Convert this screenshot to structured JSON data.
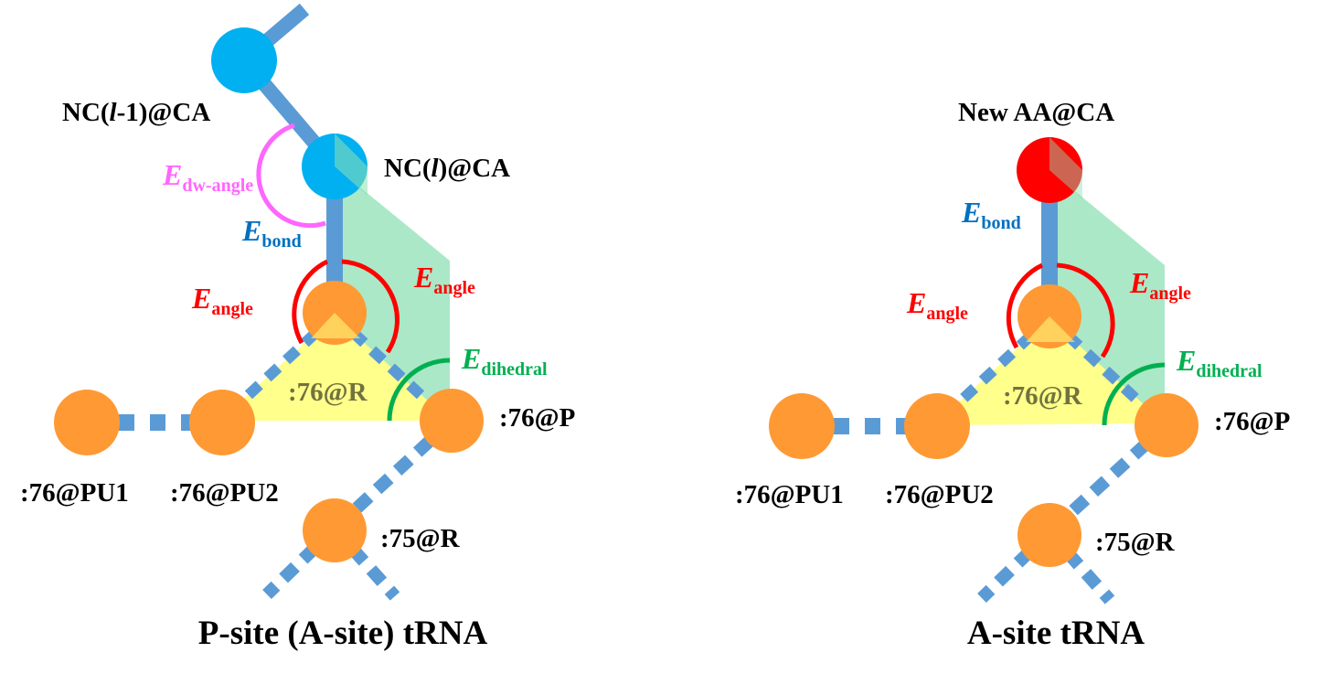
{
  "left": {
    "title": "P-site (A-site) tRNA",
    "atoms": {
      "nc_prev": "NC(l-1)@CA",
      "nc_cur": "NC(l)@CA",
      "r76": ":76@R",
      "p76": ":76@P",
      "pu1": ":76@PU1",
      "pu2": ":76@PU2",
      "r75": ":75@R"
    },
    "energy": {
      "dw_angle": {
        "symbol": "E",
        "subscript": "dw-angle"
      },
      "bond": {
        "symbol": "E",
        "subscript": "bond"
      },
      "angle_left": {
        "symbol": "E",
        "subscript": "angle"
      },
      "angle_right": {
        "symbol": "E",
        "subscript": "angle"
      },
      "dihedral": {
        "symbol": "E",
        "subscript": "dihedral"
      }
    }
  },
  "right": {
    "title": "A-site tRNA",
    "atoms": {
      "new_aa": "New AA@CA",
      "r76": ":76@R",
      "p76": ":76@P",
      "pu1": ":76@PU1",
      "pu2": ":76@PU2",
      "r75": ":75@R"
    },
    "energy": {
      "bond": {
        "symbol": "E",
        "subscript": "bond"
      },
      "angle_left": {
        "symbol": "E",
        "subscript": "angle"
      },
      "angle_right": {
        "symbol": "E",
        "subscript": "angle"
      },
      "dihedral": {
        "symbol": "E",
        "subscript": "dihedral"
      }
    }
  },
  "colors": {
    "backbone_link": "#5b9bd5",
    "nc_atom": "#00b0f0",
    "new_aa_atom": "#ff0000",
    "trna_atom": "#ff9933",
    "angle_arc": "#ff0000",
    "dihedral_arc": "#00b050",
    "dw_angle_arc": "#ff66ff",
    "bond_label": "#0070c0",
    "dihedral_plane": "#8fe0b4",
    "angle_plane": "#ffff80"
  }
}
